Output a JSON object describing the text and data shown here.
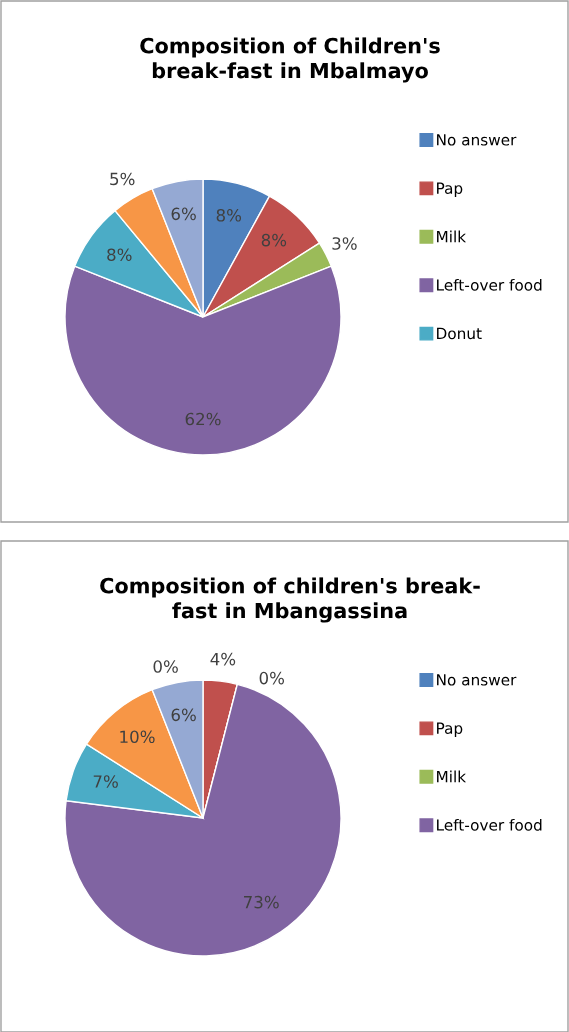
{
  "chart_data": [
    {
      "type": "pie",
      "title": "Composition of Children's\nbreak-fast in Mbalmayo",
      "categories": [
        "No answer",
        "Pap",
        "Milk",
        "Left-over food",
        "Donut",
        null,
        null
      ],
      "values": [
        8,
        8,
        3,
        62,
        8,
        5,
        6
      ],
      "value_labels": [
        "8%",
        "8%",
        "3%",
        "62%",
        "8%",
        "5%",
        "6%"
      ],
      "colors": [
        "#4f81bd",
        "#c0504d",
        "#9bbb59",
        "#8064a2",
        "#4bacc6",
        "#f79646",
        "#95a9d3"
      ],
      "legend": "right"
    },
    {
      "type": "pie",
      "title": "Composition of children's break-\nfast in Mbangassina",
      "categories": [
        "No answer",
        "Pap",
        "Milk",
        "Left-over food",
        null,
        null,
        null
      ],
      "values": [
        0,
        4,
        0,
        73,
        7,
        10,
        6
      ],
      "value_labels": [
        "0%",
        "4%",
        "0%",
        "73%",
        "7%",
        "10%",
        "6%"
      ],
      "colors": [
        "#4f81bd",
        "#c0504d",
        "#9bbb59",
        "#8064a2",
        "#4bacc6",
        "#f79646",
        "#95a9d3"
      ],
      "legend": "right"
    }
  ]
}
